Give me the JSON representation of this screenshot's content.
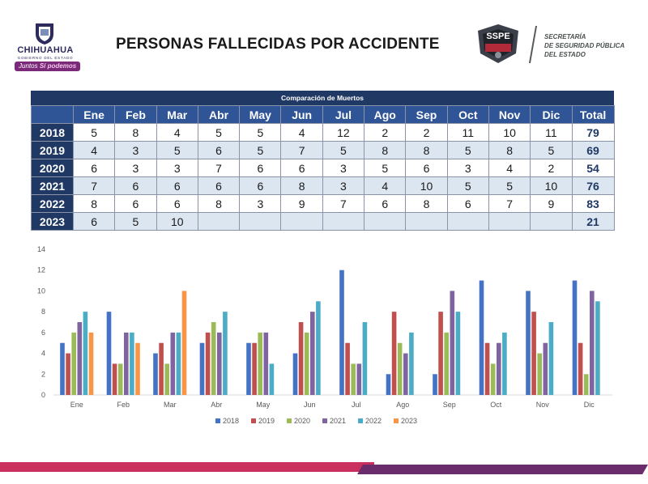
{
  "header": {
    "title": "PERSONAS FALLECIDAS POR ACCIDENTE",
    "left_logo": {
      "name": "CHIHUAHUA",
      "sub": "GOBIERNO DEL ESTADO",
      "slogan_a": "Juntos",
      "slogan_b": "Sí podemos"
    },
    "right_logo": {
      "emblem": "SSPE",
      "line1": "SECRETARÍA",
      "line2": "DE SEGURIDAD PÚBLICA",
      "line3": "DEL ESTADO"
    }
  },
  "table": {
    "caption": "Comparación de Muertos",
    "headers": [
      "Ene",
      "Feb",
      "Mar",
      "Abr",
      "May",
      "Jun",
      "Jul",
      "Ago",
      "Sep",
      "Oct",
      "Nov",
      "Dic",
      "Total"
    ],
    "rows": [
      {
        "year": "2018",
        "cells": [
          "5",
          "8",
          "4",
          "5",
          "5",
          "4",
          "12",
          "2",
          "2",
          "11",
          "10",
          "11",
          "79"
        ]
      },
      {
        "year": "2019",
        "cells": [
          "4",
          "3",
          "5",
          "6",
          "5",
          "7",
          "5",
          "8",
          "8",
          "5",
          "8",
          "5",
          "69"
        ]
      },
      {
        "year": "2020",
        "cells": [
          "6",
          "3",
          "3",
          "7",
          "6",
          "6",
          "3",
          "5",
          "6",
          "3",
          "4",
          "2",
          "54"
        ]
      },
      {
        "year": "2021",
        "cells": [
          "7",
          "6",
          "6",
          "6",
          "6",
          "8",
          "3",
          "4",
          "10",
          "5",
          "5",
          "10",
          "76"
        ]
      },
      {
        "year": "2022",
        "cells": [
          "8",
          "6",
          "6",
          "8",
          "3",
          "9",
          "7",
          "6",
          "8",
          "6",
          "7",
          "9",
          "83"
        ]
      },
      {
        "year": "2023",
        "cells": [
          "6",
          "5",
          "10",
          "",
          "",
          "",
          "",
          "",
          "",
          "",
          "",
          "",
          "21"
        ]
      }
    ]
  },
  "chart_data": {
    "type": "bar",
    "categories": [
      "Ene",
      "Feb",
      "Mar",
      "Abr",
      "May",
      "Jun",
      "Jul",
      "Ago",
      "Sep",
      "Oct",
      "Nov",
      "Dic"
    ],
    "ylim": [
      0,
      14
    ],
    "yticks": [
      0,
      2,
      4,
      6,
      8,
      10,
      12,
      14
    ],
    "grid": false,
    "legend": "bottom",
    "series": [
      {
        "name": "2018",
        "color": "#4472c4",
        "values": [
          5,
          8,
          4,
          5,
          5,
          4,
          12,
          2,
          2,
          11,
          10,
          11
        ]
      },
      {
        "name": "2019",
        "color": "#c0504d",
        "values": [
          4,
          3,
          5,
          6,
          5,
          7,
          5,
          8,
          8,
          5,
          8,
          5
        ]
      },
      {
        "name": "2020",
        "color": "#9bbb59",
        "values": [
          6,
          3,
          3,
          7,
          6,
          6,
          3,
          5,
          6,
          3,
          4,
          2
        ]
      },
      {
        "name": "2021",
        "color": "#8064a2",
        "values": [
          7,
          6,
          6,
          6,
          6,
          8,
          3,
          4,
          10,
          5,
          5,
          10
        ]
      },
      {
        "name": "2022",
        "color": "#4bacc6",
        "values": [
          8,
          6,
          6,
          8,
          3,
          9,
          7,
          6,
          8,
          6,
          7,
          9
        ]
      },
      {
        "name": "2023",
        "color": "#f79646",
        "values": [
          6,
          5,
          10,
          null,
          null,
          null,
          null,
          null,
          null,
          null,
          null,
          null
        ]
      }
    ]
  }
}
